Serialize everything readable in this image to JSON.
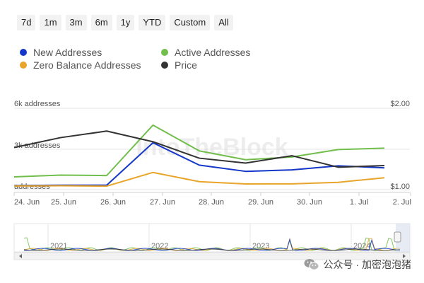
{
  "range_buttons": [
    "7d",
    "1m",
    "3m",
    "6m",
    "1y",
    "YTD",
    "Custom",
    "All"
  ],
  "legend": [
    {
      "label": "New Addresses",
      "color": "#1437c8"
    },
    {
      "label": "Active Addresses",
      "color": "#71be4c"
    },
    {
      "label": "Zero Balance Addresses",
      "color": "#e8a52a"
    },
    {
      "label": "Price",
      "color": "#333333"
    }
  ],
  "watermark_brand": "IntoTheBlock",
  "footer_text": "公众号 · 加密泡泡猪",
  "chart_data": {
    "type": "line",
    "x": [
      "24. Jun",
      "25. Jun",
      "26. Jun",
      "27. Jun",
      "28. Jun",
      "29. Jun",
      "30. Jun",
      "1. Jul",
      "2. Jul"
    ],
    "left_axis": {
      "ticks": [
        "6k addresses",
        "3k addresses",
        "addresses"
      ],
      "ylim": [
        0,
        6000
      ]
    },
    "right_axis": {
      "ticks": [
        "$2.00",
        "$1.00"
      ],
      "ylim": [
        1.0,
        2.0
      ]
    },
    "grid": true,
    "series": [
      {
        "name": "Active Addresses",
        "color": "#71be4c",
        "axis": "left",
        "values": [
          780,
          910,
          880,
          4600,
          2700,
          2050,
          2250,
          2800,
          2900
        ]
      },
      {
        "name": "New Addresses",
        "color": "#1437c8",
        "axis": "left",
        "values": [
          140,
          170,
          170,
          3300,
          1650,
          1190,
          1300,
          1600,
          1450
        ]
      },
      {
        "name": "Zero Balance Addresses",
        "color": "#e8a52a",
        "axis": "left",
        "values": [
          110,
          130,
          100,
          1110,
          430,
          260,
          270,
          380,
          720
        ]
      },
      {
        "name": "Price",
        "color": "#333333",
        "axis": "right",
        "values": [
          1.47,
          1.59,
          1.67,
          1.54,
          1.34,
          1.28,
          1.37,
          1.23,
          1.25
        ]
      }
    ],
    "navigator": {
      "year_labels": [
        "2021",
        "2022",
        "2023",
        "2024"
      ]
    }
  }
}
